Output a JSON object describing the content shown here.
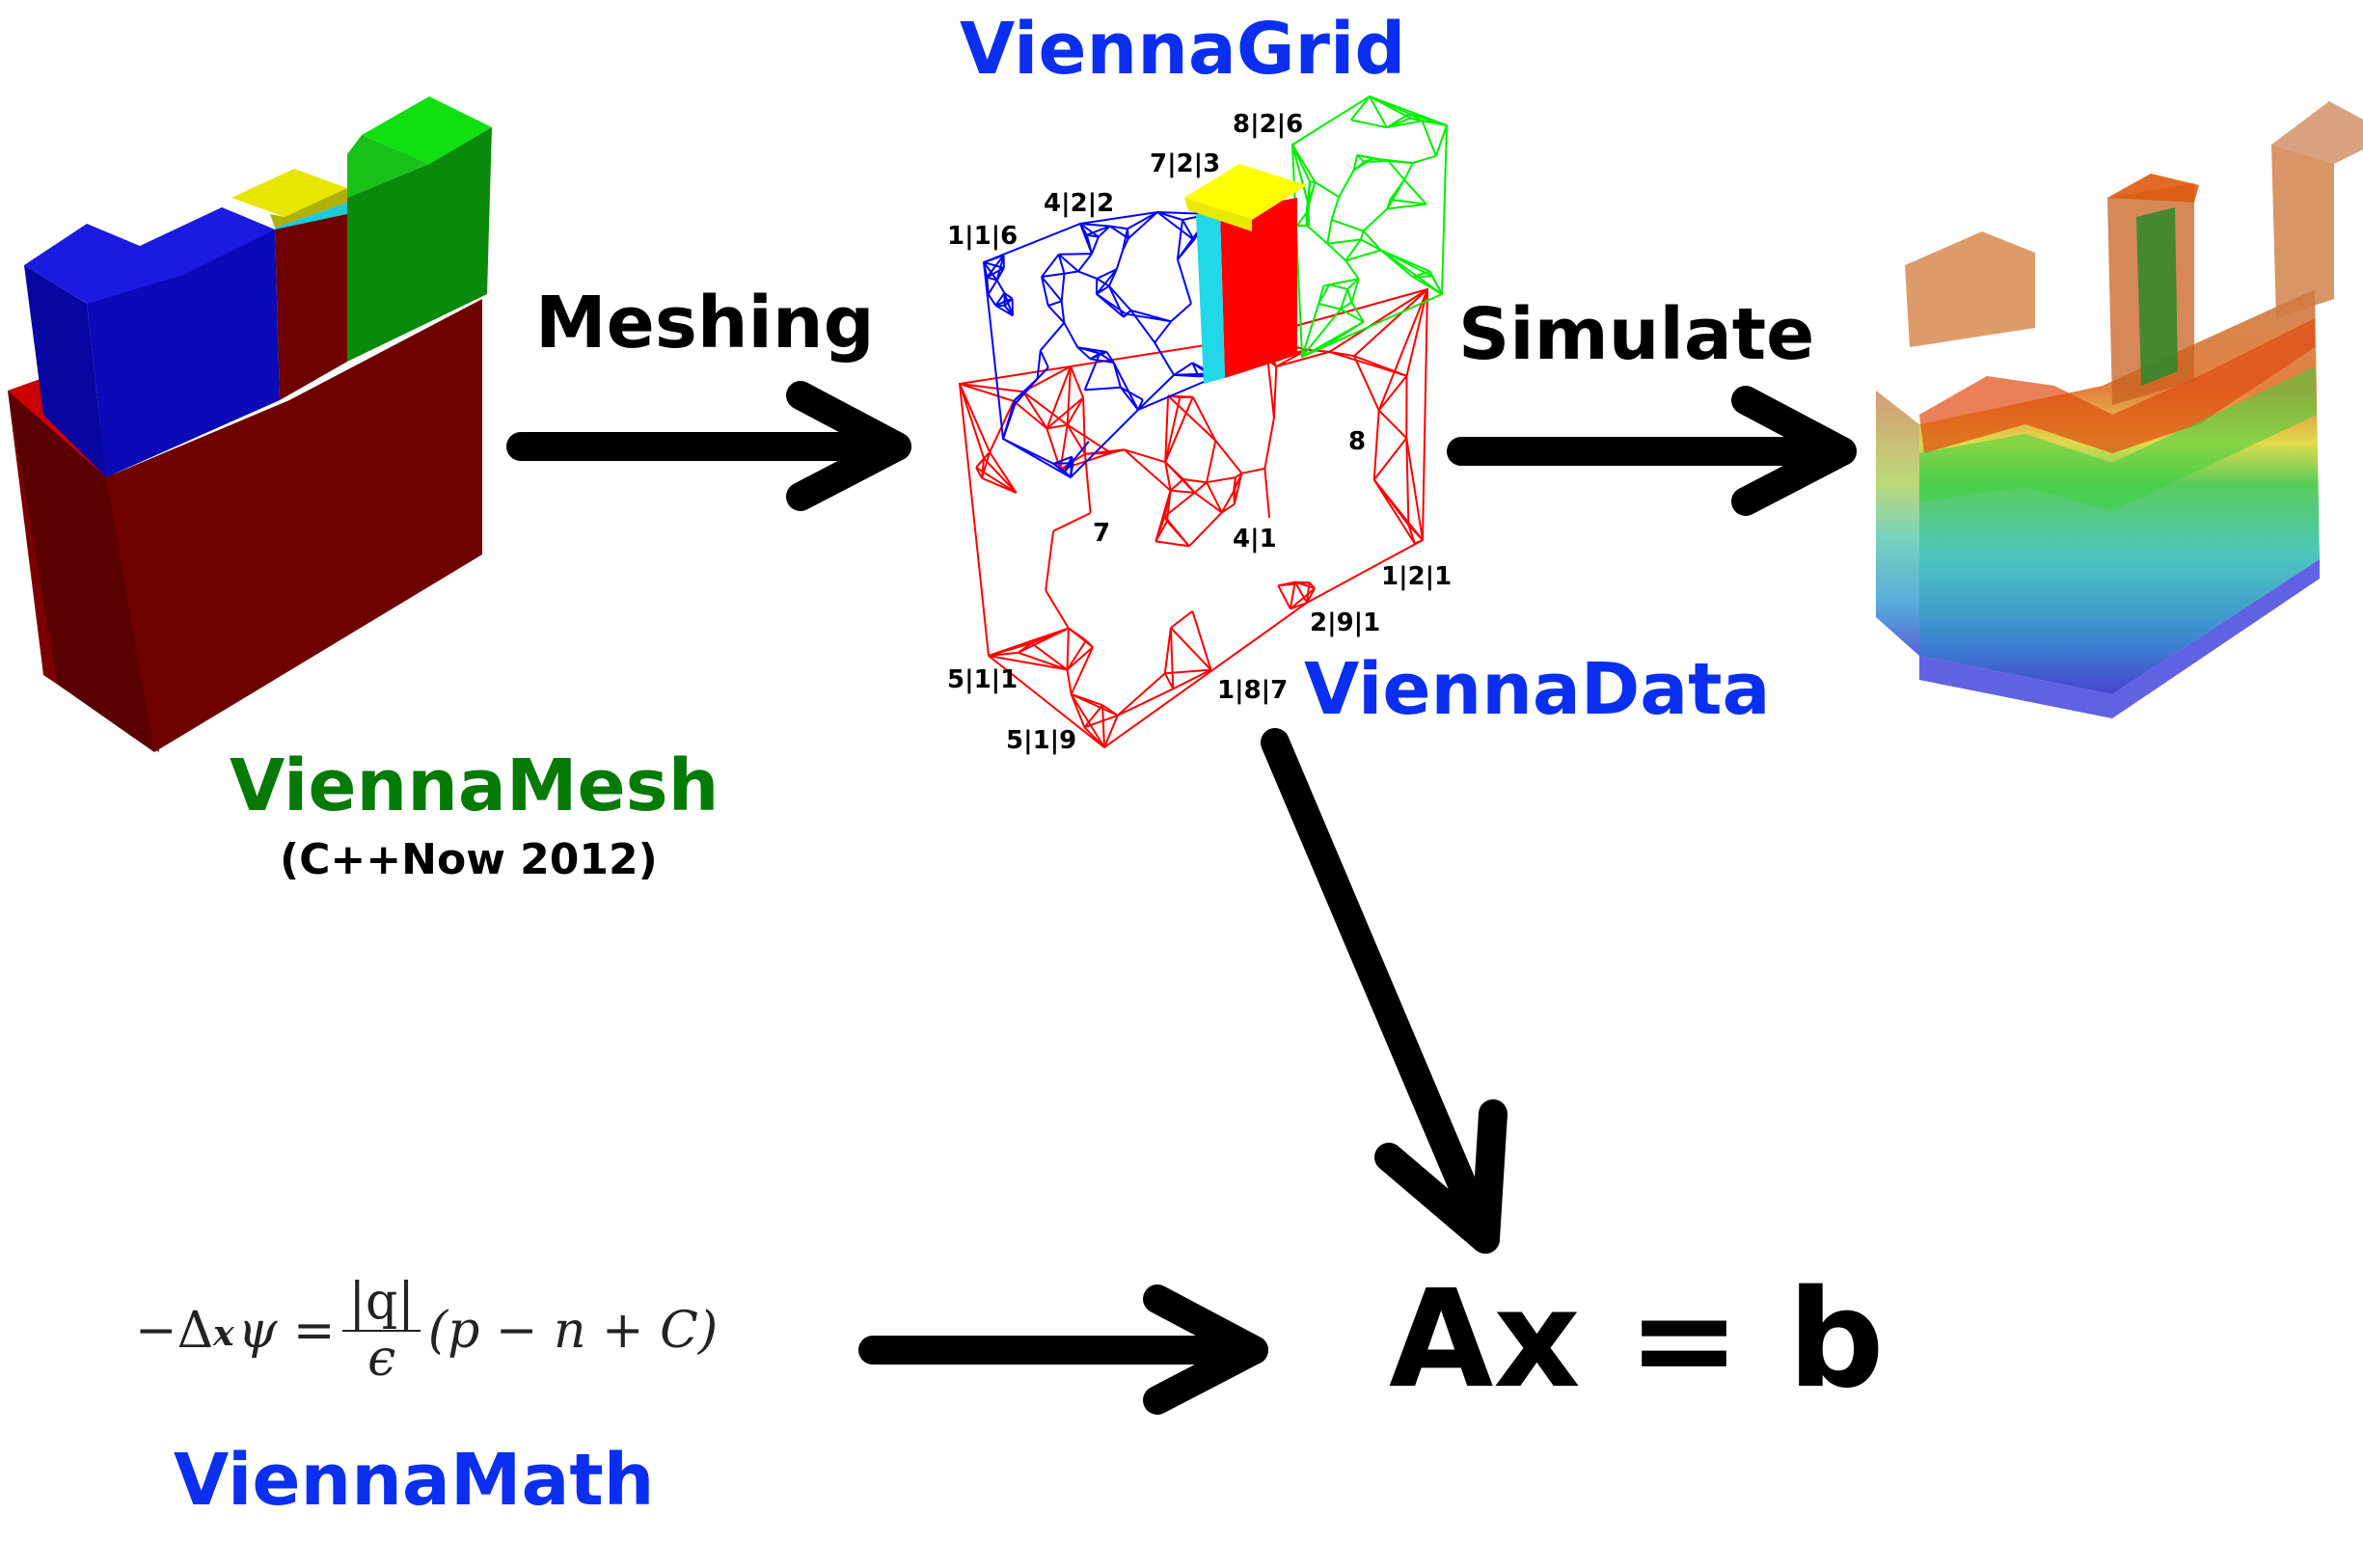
{
  "labels": {
    "viennamesh": "ViennaMesh",
    "viennamesh_sub": "(C++Now 2012)",
    "viennagrid": "ViennaGrid",
    "viennadata": "ViennaData",
    "viennamath": "ViennaMath",
    "meshing": "Meshing",
    "simulate": "Simulate",
    "linear_system": "Ax = b"
  },
  "equation": {
    "lhs": "−Δ",
    "lhs_sub": "x",
    "psi": "ψ =",
    "numerator": "|q|",
    "denominator": "ϵ",
    "rhs": "(p − n + C)"
  },
  "mesh_tags": [
    "1|1|6",
    "4|2|2",
    "7|2|3",
    "8|2|6",
    "8",
    "7",
    "4|1",
    "1|2|1",
    "2|9|1",
    "5|1|1",
    "1|8|7",
    "5|1|9"
  ],
  "colors": {
    "label_blue": "#0b2ff0",
    "label_green": "#057a06",
    "substrate_red": "#6e0000",
    "block_blue": "#0a0ab8",
    "block_green": "#0a8a0a",
    "block_yellow": "#e6e600",
    "mesh_red": "#ff0000",
    "mesh_blue": "#0000ff",
    "mesh_green": "#00ee00"
  }
}
